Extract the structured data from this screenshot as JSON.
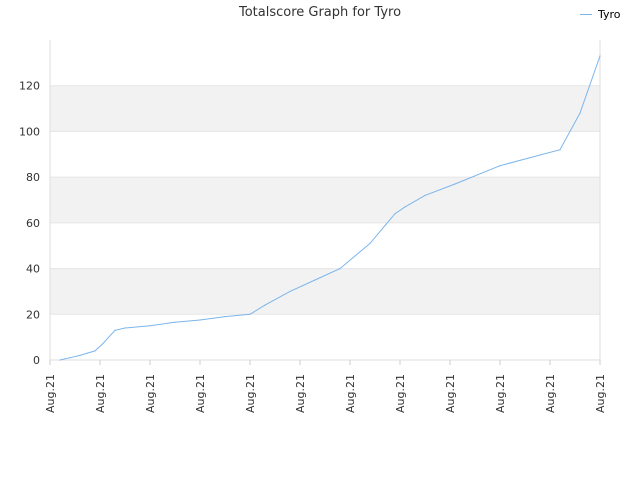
{
  "chart_data": {
    "type": "line",
    "title": "Totalscore Graph for Tyro",
    "xlabel": "",
    "ylabel": "",
    "ylim": [
      0,
      140
    ],
    "yticks": [
      0,
      20,
      40,
      60,
      80,
      100,
      120
    ],
    "x_tick_labels": [
      "Aug.21",
      "Aug.21",
      "Aug.21",
      "Aug.21",
      "Aug.21",
      "Aug.21",
      "Aug.21",
      "Aug.21",
      "Aug.21",
      "Aug.21",
      "Aug.21",
      "Aug.21"
    ],
    "legend_position": "top-right",
    "grid": true,
    "colors": {
      "series": "#7cb5ec",
      "band": "#f2f2f2",
      "band_top": "#ececec",
      "grid": "#e6e6e6"
    },
    "series": [
      {
        "name": "Tyro",
        "x": [
          0.2,
          0.4,
          0.6,
          0.75,
          0.9,
          1.05,
          1.3,
          1.5,
          2.0,
          2.5,
          3.0,
          3.5,
          4.0,
          4.3,
          4.8,
          5.3,
          5.8,
          6.4,
          6.9,
          7.1,
          7.5,
          8.1,
          9.0,
          10.2,
          10.6,
          11.0
        ],
        "y": [
          0,
          1,
          2,
          3,
          4,
          7,
          13,
          14,
          15,
          16.5,
          17.5,
          19,
          20,
          24,
          30,
          35,
          40,
          51,
          64,
          67,
          72,
          77,
          85,
          92,
          108,
          133
        ]
      }
    ]
  }
}
